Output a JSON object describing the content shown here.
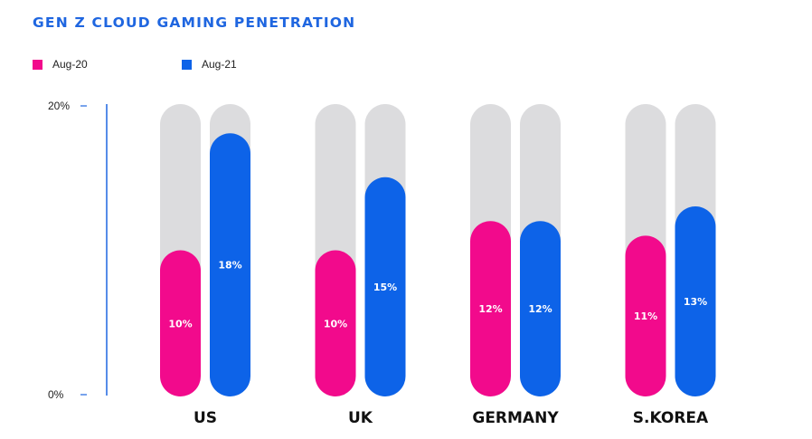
{
  "chart_data": {
    "type": "bar",
    "title": "GEN Z CLOUD GAMING PENETRATION",
    "categories": [
      "US",
      "UK",
      "GERMANY",
      "S.KOREA"
    ],
    "series": [
      {
        "name": "Aug-20",
        "color": "#f20a8c",
        "values": [
          10,
          10,
          12,
          11
        ],
        "labels": [
          "10%",
          "10%",
          "12%",
          "11%"
        ]
      },
      {
        "name": "Aug-21",
        "color": "#0d63e8",
        "values": [
          18,
          15,
          12,
          13
        ],
        "labels": [
          "18%",
          "15%",
          "12%",
          "13%"
        ]
      }
    ],
    "ylim": [
      0,
      20
    ],
    "yticks": [
      {
        "value": 20,
        "label": "20%"
      },
      {
        "value": 0,
        "label": "0%"
      }
    ],
    "track_color": "#dcdcde",
    "axis_color": "#1f66e0",
    "legend_position": "top-left",
    "grid": false
  }
}
